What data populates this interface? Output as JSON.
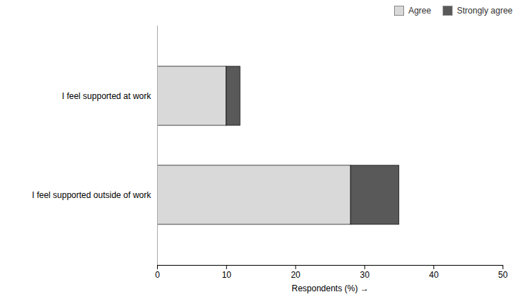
{
  "chart_data": {
    "type": "bar",
    "orientation": "horizontal",
    "stacked": true,
    "categories": [
      "I feel supported outside of work",
      "I feel supported at work"
    ],
    "series": [
      {
        "name": "Agree",
        "color": "#d9d9d9",
        "values": [
          28,
          10
        ]
      },
      {
        "name": "Strongly agree",
        "color": "#595959",
        "values": [
          7,
          2
        ]
      }
    ],
    "xlabel": "Respondents (%)",
    "xlim": [
      0,
      50
    ],
    "xticks": [
      0,
      10,
      20,
      30,
      40,
      50
    ],
    "legend": "upper right",
    "grid": false
  }
}
